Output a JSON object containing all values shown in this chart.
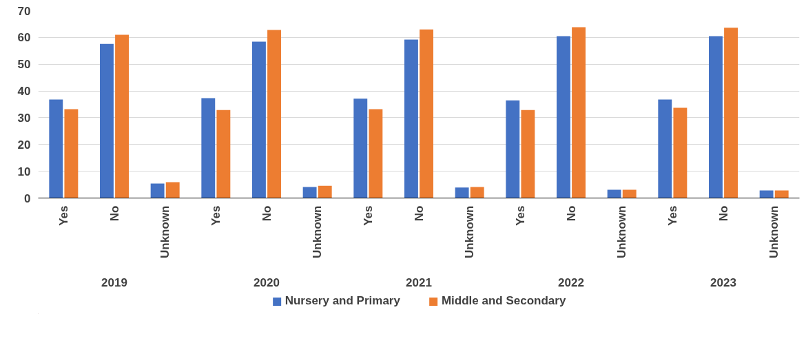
{
  "chart_data": {
    "type": "bar",
    "categories": [
      "Yes",
      "No",
      "Unknown",
      "Yes",
      "No",
      "Unknown",
      "Yes",
      "No",
      "Unknown",
      "Yes",
      "No",
      "Unknown",
      "Yes",
      "No",
      "Unknown"
    ],
    "annotations": [
      "2019",
      "2020",
      "2021",
      "2022",
      "2023"
    ],
    "series": [
      {
        "name": "Nursery and Primary",
        "color": "#4472c4",
        "values": [
          36.8,
          57.6,
          5.4,
          37.3,
          58.4,
          4.1,
          37.1,
          59.2,
          3.9,
          36.5,
          60.5,
          3.1,
          36.8,
          60.5,
          2.8
        ]
      },
      {
        "name": "Middle and Secondary",
        "color": "#ed7d31",
        "values": [
          33.2,
          61.0,
          5.9,
          32.9,
          62.8,
          4.6,
          33.2,
          63.0,
          4.1,
          32.9,
          63.8,
          3.1,
          33.7,
          63.6,
          2.8
        ]
      }
    ],
    "ylim": [
      0,
      70
    ],
    "yticks": [
      0,
      10,
      20,
      30,
      40,
      50,
      60,
      70
    ],
    "grid": "y",
    "legend": "bottom"
  }
}
